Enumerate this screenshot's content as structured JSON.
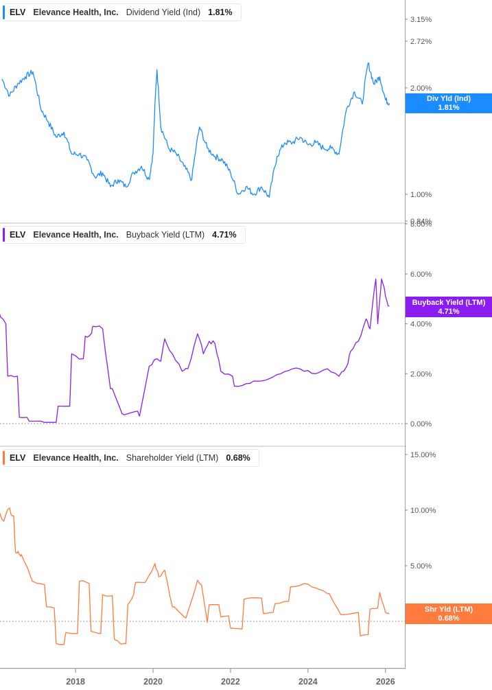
{
  "chart_data": [
    {
      "type": "line",
      "title": "ELV Elevance Health, Inc. Dividend Yield (Ind)",
      "legend": {
        "ticker": "ELV",
        "company": "Elevance Health, Inc.",
        "metric": "Dividend Yield (Ind)",
        "value": "1.81%"
      },
      "color": "#1a8cff",
      "badge": {
        "label": "Div Yld (Ind)",
        "value": "1.81%"
      },
      "yscale": "log",
      "yticks": [
        "3.15%",
        "2.72%",
        "2.00%",
        "1.00%",
        "0.84%"
      ],
      "ytick_values": [
        3.15,
        2.72,
        2.0,
        1.0,
        0.84
      ],
      "xlabel": "",
      "ylabel": "",
      "x": [
        2016.1,
        2016.3,
        2016.5,
        2016.7,
        2016.9,
        2017.1,
        2017.3,
        2017.5,
        2017.7,
        2017.9,
        2018.1,
        2018.3,
        2018.5,
        2018.7,
        2018.9,
        2019.1,
        2019.3,
        2019.5,
        2019.7,
        2019.9,
        2020.0,
        2020.1,
        2020.2,
        2020.4,
        2020.6,
        2020.8,
        2021.0,
        2021.2,
        2021.4,
        2021.6,
        2021.8,
        2022.0,
        2022.2,
        2022.4,
        2022.6,
        2022.8,
        2023.0,
        2023.2,
        2023.4,
        2023.6,
        2023.8,
        2024.0,
        2024.2,
        2024.4,
        2024.6,
        2024.8,
        2025.0,
        2025.2,
        2025.4,
        2025.55,
        2025.7,
        2025.85,
        2026.0,
        2026.1
      ],
      "values": [
        2.12,
        1.9,
        2.05,
        2.15,
        2.22,
        1.75,
        1.6,
        1.45,
        1.5,
        1.3,
        1.3,
        1.25,
        1.12,
        1.15,
        1.05,
        1.1,
        1.05,
        1.15,
        1.2,
        1.1,
        1.3,
        2.25,
        1.55,
        1.35,
        1.3,
        1.2,
        1.1,
        1.55,
        1.35,
        1.28,
        1.25,
        1.15,
        1.0,
        1.05,
        1.0,
        1.05,
        0.98,
        1.28,
        1.4,
        1.4,
        1.45,
        1.38,
        1.4,
        1.35,
        1.35,
        1.3,
        1.75,
        1.95,
        1.8,
        2.35,
        2.05,
        2.15,
        1.85,
        1.81
      ],
      "ylim": [
        0.84,
        3.4
      ]
    },
    {
      "type": "line",
      "title": "ELV Elevance Health, Inc. Buyback Yield (LTM)",
      "legend": {
        "ticker": "ELV",
        "company": "Elevance Health, Inc.",
        "metric": "Buyback Yield (LTM)",
        "value": "4.71%"
      },
      "color": "#8a1cf0",
      "badge": {
        "label": "Buyback Yield (LTM)",
        "value": "4.71%"
      },
      "yscale": "linear",
      "yticks": [
        "8.00%",
        "6.00%",
        "4.00%",
        "2.00%",
        "0.00%"
      ],
      "ytick_values": [
        8,
        6,
        4,
        2,
        0
      ],
      "xlabel": "",
      "ylabel": "",
      "x": [
        2016.0,
        2016.2,
        2016.25,
        2016.5,
        2016.55,
        2016.75,
        2016.8,
        2017.1,
        2017.2,
        2017.5,
        2017.55,
        2017.85,
        2017.9,
        2018.2,
        2018.25,
        2018.4,
        2018.45,
        2018.7,
        2018.9,
        2018.95,
        2019.2,
        2019.25,
        2019.6,
        2019.65,
        2019.9,
        2020.1,
        2020.2,
        2020.3,
        2020.5,
        2020.75,
        2020.9,
        2021.15,
        2021.3,
        2021.45,
        2021.6,
        2021.75,
        2022.05,
        2022.1,
        2022.4,
        2022.7,
        2023.0,
        2023.3,
        2023.6,
        2023.9,
        2024.2,
        2024.5,
        2024.8,
        2025.0,
        2025.1,
        2025.3,
        2025.5,
        2025.6,
        2025.75,
        2025.8,
        2025.9,
        2026.0,
        2026.1
      ],
      "values": [
        4.6,
        4.0,
        1.9,
        1.9,
        0.25,
        0.25,
        0.1,
        0.1,
        0.05,
        0.05,
        0.7,
        0.7,
        2.8,
        2.6,
        3.5,
        3.6,
        3.9,
        3.8,
        1.4,
        1.4,
        0.4,
        0.35,
        0.5,
        0.3,
        2.3,
        2.6,
        2.5,
        3.4,
        2.8,
        2.1,
        2.2,
        3.6,
        2.8,
        3.3,
        3.2,
        2.1,
        1.9,
        1.5,
        1.6,
        1.7,
        1.8,
        2.0,
        2.2,
        2.1,
        2.0,
        2.2,
        1.9,
        2.3,
        2.9,
        3.3,
        4.2,
        3.8,
        5.8,
        4.0,
        5.8,
        5.1,
        4.71
      ],
      "ylim": [
        -0.3,
        8.0
      ]
    },
    {
      "type": "line",
      "title": "ELV Elevance Health, Inc. Shareholder Yield (LTM)",
      "legend": {
        "ticker": "ELV",
        "company": "Elevance Health, Inc.",
        "metric": "Shareholder Yield (LTM)",
        "value": "0.68%"
      },
      "color": "#ff7a3d",
      "badge": {
        "label": "Shr Yld (LTM)",
        "value": "0.68%"
      },
      "yscale": "linear",
      "yticks": [
        "15.00%",
        "10.00%",
        "5.00%",
        "0.00%"
      ],
      "ytick_values": [
        15,
        10,
        5,
        0
      ],
      "xlabel": "",
      "ylabel": "",
      "x": [
        2016.0,
        2016.15,
        2016.3,
        2016.4,
        2016.45,
        2016.55,
        2016.6,
        2016.85,
        2016.9,
        2017.2,
        2017.25,
        2017.45,
        2017.5,
        2017.7,
        2017.75,
        2018.05,
        2018.1,
        2018.35,
        2018.4,
        2018.65,
        2018.7,
        2018.95,
        2019.0,
        2019.1,
        2019.15,
        2019.3,
        2019.35,
        2019.5,
        2019.55,
        2019.8,
        2020.05,
        2020.15,
        2020.3,
        2020.5,
        2020.55,
        2020.8,
        2020.85,
        2021.15,
        2021.25,
        2021.4,
        2021.45,
        2021.7,
        2021.75,
        2021.95,
        2022.0,
        2022.3,
        2022.35,
        2022.8,
        2022.85,
        2023.1,
        2023.15,
        2023.5,
        2023.55,
        2023.9,
        2024.2,
        2024.5,
        2024.55,
        2024.85,
        2024.9,
        2025.3,
        2025.35,
        2025.55,
        2025.6,
        2025.8,
        2025.85,
        2026.0,
        2026.1
      ],
      "values": [
        10.0,
        9.0,
        10.2,
        9.5,
        6.2,
        6.0,
        6.0,
        3.9,
        3.6,
        3.3,
        1.3,
        1.2,
        -2.0,
        -2.1,
        -1.0,
        -1.1,
        3.6,
        3.4,
        -0.9,
        -1.1,
        2.4,
        2.3,
        -1.6,
        -1.8,
        -2.0,
        -2.0,
        1.5,
        2.4,
        3.5,
        3.5,
        5.2,
        4.0,
        4.6,
        1.3,
        1.3,
        0.4,
        0.3,
        3.7,
        3.3,
        -0.1,
        1.5,
        1.5,
        0.4,
        0.5,
        -0.6,
        -0.7,
        2.0,
        2.1,
        0.7,
        0.8,
        1.6,
        1.8,
        3.1,
        3.4,
        3.0,
        2.5,
        2.5,
        0.6,
        0.6,
        0.8,
        -1.3,
        -1.2,
        1.1,
        1.2,
        2.6,
        0.8,
        0.68
      ],
      "ylim": [
        -2.5,
        15.0
      ]
    }
  ],
  "x_axis": {
    "ticks": [
      "2018",
      "2020",
      "2022",
      "2024",
      "2026"
    ],
    "tick_values": [
      2018,
      2020,
      2022,
      2024,
      2026
    ],
    "range": [
      2016.05,
      2026.5
    ]
  }
}
